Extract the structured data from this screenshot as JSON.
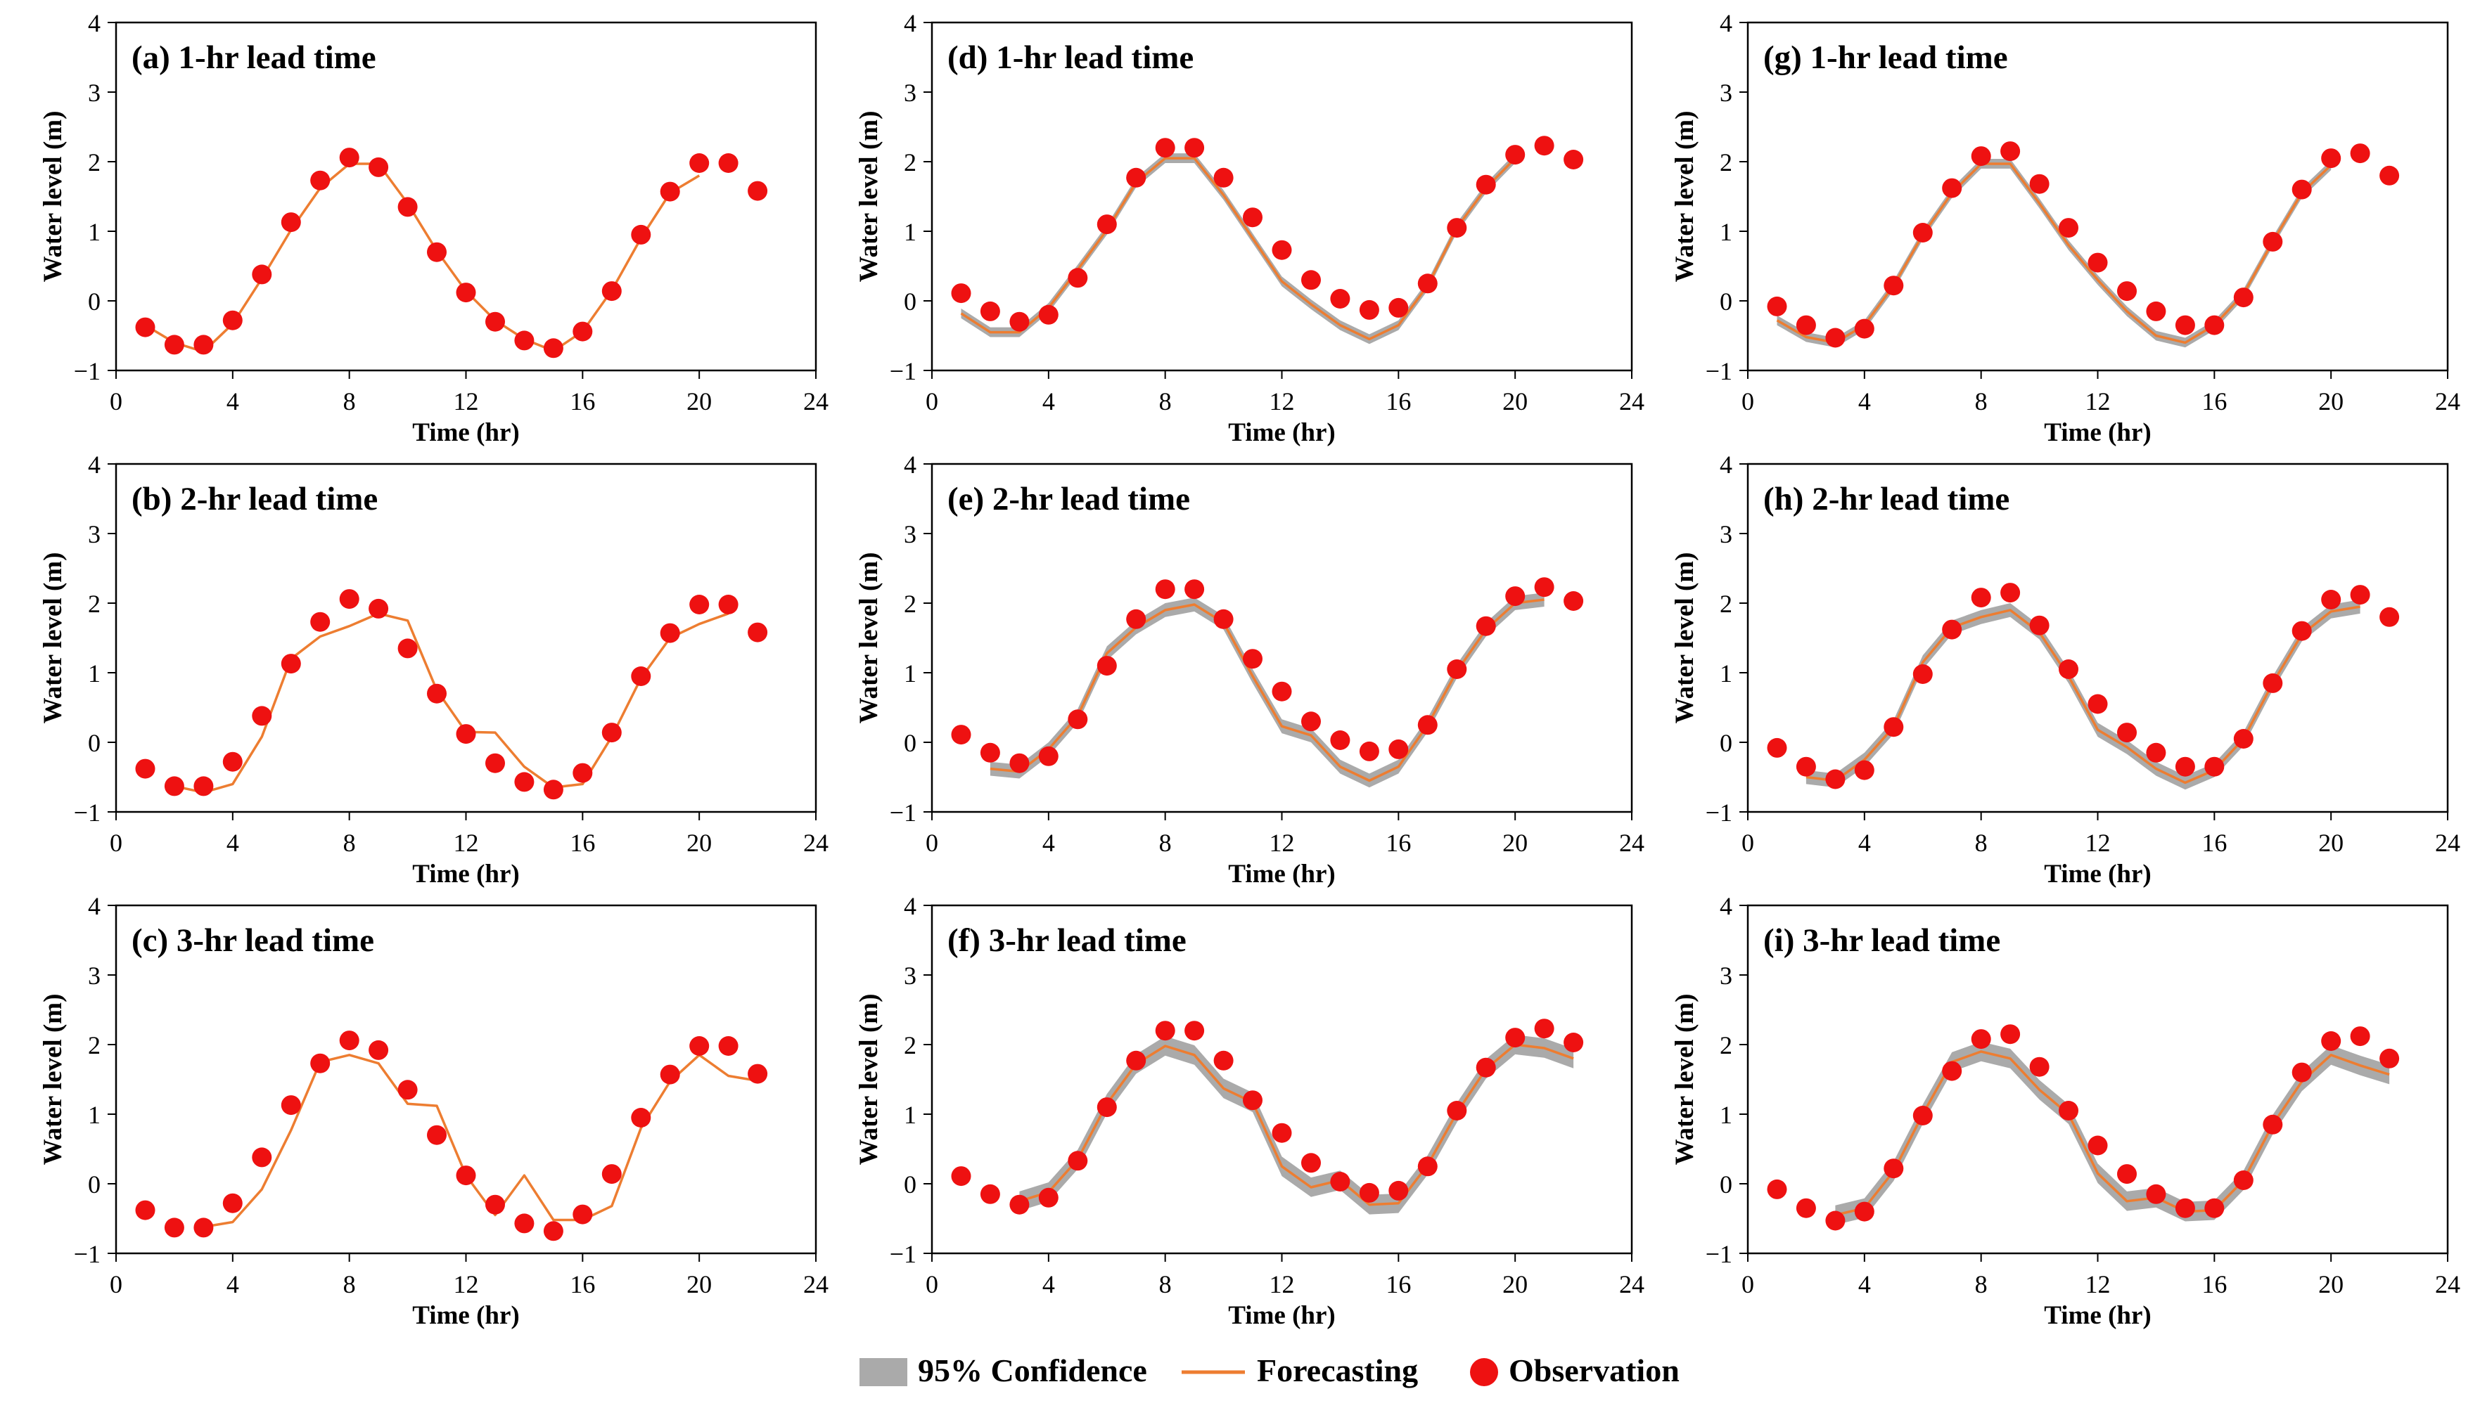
{
  "chart_data": [
    {
      "id": "a",
      "type": "line",
      "title": "(a) 1-hr lead time",
      "xlabel": "Time (hr)",
      "ylabel": "Water level (m)",
      "xlim": [
        0,
        24
      ],
      "ylim": [
        -1,
        4
      ],
      "xticks": [
        0,
        4,
        8,
        12,
        16,
        20,
        24
      ],
      "yticks": [
        -1,
        0,
        1,
        2,
        3,
        4
      ],
      "observation": {
        "x": [
          1,
          2,
          3,
          4,
          5,
          6,
          7,
          8,
          9,
          10,
          11,
          12,
          13,
          14,
          15,
          16,
          17,
          18,
          19,
          20,
          21,
          22
        ],
        "y": [
          -0.38,
          -0.63,
          -0.63,
          -0.28,
          0.38,
          1.13,
          1.73,
          2.06,
          1.92,
          1.35,
          0.7,
          0.12,
          -0.3,
          -0.57,
          -0.68,
          -0.44,
          0.14,
          0.95,
          1.57,
          1.98,
          1.98,
          1.58
        ]
      },
      "forecast": {
        "x": [
          1,
          2,
          3,
          4,
          5,
          6,
          7,
          8,
          9,
          10,
          11,
          12,
          13,
          14,
          15,
          16,
          17,
          18,
          19,
          20
        ],
        "y": [
          -0.35,
          -0.6,
          -0.73,
          -0.33,
          0.32,
          1.02,
          1.62,
          1.97,
          1.97,
          1.4,
          0.72,
          0.14,
          -0.28,
          -0.55,
          -0.72,
          -0.44,
          0.15,
          0.9,
          1.55,
          1.8
        ]
      },
      "confidence": null
    },
    {
      "id": "b",
      "type": "line",
      "title": "(b) 2-hr lead time",
      "xlabel": "Time (hr)",
      "ylabel": "Water level (m)",
      "xlim": [
        0,
        24
      ],
      "ylim": [
        -1,
        4
      ],
      "xticks": [
        0,
        4,
        8,
        12,
        16,
        20,
        24
      ],
      "yticks": [
        -1,
        0,
        1,
        2,
        3,
        4
      ],
      "observation": {
        "x": [
          1,
          2,
          3,
          4,
          5,
          6,
          7,
          8,
          9,
          10,
          11,
          12,
          13,
          14,
          15,
          16,
          17,
          18,
          19,
          20,
          21,
          22
        ],
        "y": [
          -0.38,
          -0.63,
          -0.63,
          -0.28,
          0.38,
          1.13,
          1.73,
          2.06,
          1.92,
          1.35,
          0.7,
          0.12,
          -0.3,
          -0.57,
          -0.68,
          -0.44,
          0.14,
          0.95,
          1.57,
          1.98,
          1.98,
          1.58
        ]
      },
      "forecast": {
        "x": [
          2,
          3,
          4,
          5,
          6,
          7,
          8,
          9,
          10,
          11,
          12,
          13,
          14,
          15,
          16,
          17,
          18,
          19,
          20,
          21
        ],
        "y": [
          -0.63,
          -0.72,
          -0.6,
          0.08,
          1.2,
          1.52,
          1.67,
          1.85,
          1.75,
          0.75,
          0.15,
          0.14,
          -0.35,
          -0.65,
          -0.6,
          0.08,
          0.92,
          1.5,
          1.7,
          1.85
        ]
      },
      "confidence": null
    },
    {
      "id": "c",
      "type": "line",
      "title": "(c) 3-hr lead time",
      "xlabel": "Time (hr)",
      "ylabel": "Water level (m)",
      "xlim": [
        0,
        24
      ],
      "ylim": [
        -1,
        4
      ],
      "xticks": [
        0,
        4,
        8,
        12,
        16,
        20,
        24
      ],
      "yticks": [
        -1,
        0,
        1,
        2,
        3,
        4
      ],
      "observation": {
        "x": [
          1,
          2,
          3,
          4,
          5,
          6,
          7,
          8,
          9,
          10,
          11,
          12,
          13,
          14,
          15,
          16,
          17,
          18,
          19,
          20,
          21,
          22
        ],
        "y": [
          -0.38,
          -0.63,
          -0.63,
          -0.28,
          0.38,
          1.13,
          1.73,
          2.06,
          1.92,
          1.35,
          0.7,
          0.12,
          -0.3,
          -0.57,
          -0.68,
          -0.44,
          0.14,
          0.95,
          1.57,
          1.98,
          1.98,
          1.58
        ]
      },
      "forecast": {
        "x": [
          3,
          4,
          5,
          6,
          7,
          8,
          9,
          10,
          11,
          12,
          13,
          14,
          15,
          16,
          17,
          18,
          19,
          20,
          21,
          22
        ],
        "y": [
          -0.62,
          -0.55,
          -0.08,
          0.77,
          1.75,
          1.85,
          1.73,
          1.15,
          1.12,
          0.12,
          -0.45,
          0.12,
          -0.52,
          -0.52,
          -0.32,
          0.8,
          1.47,
          1.85,
          1.55,
          1.48
        ]
      },
      "confidence": null
    },
    {
      "id": "d",
      "type": "line",
      "title": "(d) 1-hr lead time",
      "xlabel": "Time (hr)",
      "ylabel": "Water level (m)",
      "xlim": [
        0,
        24
      ],
      "ylim": [
        -1,
        4
      ],
      "xticks": [
        0,
        4,
        8,
        12,
        16,
        20,
        24
      ],
      "yticks": [
        -1,
        0,
        1,
        2,
        3,
        4
      ],
      "observation": {
        "x": [
          1,
          2,
          3,
          4,
          5,
          6,
          7,
          8,
          9,
          10,
          11,
          12,
          13,
          14,
          15,
          16,
          17,
          18,
          19,
          20,
          21,
          22
        ],
        "y": [
          0.11,
          -0.15,
          -0.3,
          -0.2,
          0.33,
          1.1,
          1.77,
          2.2,
          2.2,
          1.77,
          1.2,
          0.73,
          0.3,
          0.03,
          -0.13,
          -0.1,
          0.25,
          1.05,
          1.67,
          2.1,
          2.23,
          2.03
        ]
      },
      "forecast": {
        "x": [
          1,
          2,
          3,
          4,
          5,
          6,
          7,
          8,
          9,
          10,
          11,
          12,
          13,
          14,
          15,
          16,
          17,
          18,
          19,
          20
        ],
        "y": [
          -0.18,
          -0.45,
          -0.45,
          -0.1,
          0.45,
          1.02,
          1.7,
          2.05,
          2.05,
          1.52,
          0.9,
          0.28,
          -0.05,
          -0.35,
          -0.55,
          -0.35,
          0.22,
          1.05,
          1.62,
          2.05
        ]
      },
      "confidence": {
        "half_width": 0.07
      }
    },
    {
      "id": "e",
      "type": "line",
      "title": "(e) 2-hr lead time",
      "xlabel": "Time (hr)",
      "ylabel": "Water level (m)",
      "xlim": [
        0,
        24
      ],
      "ylim": [
        -1,
        4
      ],
      "xticks": [
        0,
        4,
        8,
        12,
        16,
        20,
        24
      ],
      "yticks": [
        -1,
        0,
        1,
        2,
        3,
        4
      ],
      "observation": {
        "x": [
          1,
          2,
          3,
          4,
          5,
          6,
          7,
          8,
          9,
          10,
          11,
          12,
          13,
          14,
          15,
          16,
          17,
          18,
          19,
          20,
          21,
          22
        ],
        "y": [
          0.11,
          -0.15,
          -0.3,
          -0.2,
          0.33,
          1.1,
          1.77,
          2.2,
          2.2,
          1.77,
          1.2,
          0.73,
          0.3,
          0.03,
          -0.13,
          -0.1,
          0.25,
          1.05,
          1.67,
          2.1,
          2.23,
          2.03
        ]
      },
      "forecast": {
        "x": [
          2,
          3,
          4,
          5,
          6,
          7,
          8,
          9,
          10,
          11,
          12,
          13,
          14,
          15,
          16,
          17,
          18,
          19,
          20,
          21
        ],
        "y": [
          -0.38,
          -0.42,
          -0.1,
          0.38,
          1.28,
          1.65,
          1.9,
          1.98,
          1.72,
          0.95,
          0.23,
          0.1,
          -0.35,
          -0.55,
          -0.35,
          0.25,
          1.02,
          1.62,
          2.0,
          2.05
        ]
      },
      "confidence": {
        "half_width": 0.1
      }
    },
    {
      "id": "f",
      "type": "line",
      "title": "(f) 3-hr lead time",
      "xlabel": "Time (hr)",
      "ylabel": "Water level (m)",
      "xlim": [
        0,
        24
      ],
      "ylim": [
        -1,
        4
      ],
      "xticks": [
        0,
        4,
        8,
        12,
        16,
        20,
        24
      ],
      "yticks": [
        -1,
        0,
        1,
        2,
        3,
        4
      ],
      "observation": {
        "x": [
          1,
          2,
          3,
          4,
          5,
          6,
          7,
          8,
          9,
          10,
          11,
          12,
          13,
          14,
          15,
          16,
          17,
          18,
          19,
          20,
          21,
          22
        ],
        "y": [
          0.11,
          -0.15,
          -0.3,
          -0.2,
          0.33,
          1.1,
          1.77,
          2.2,
          2.2,
          1.77,
          1.2,
          0.73,
          0.3,
          0.03,
          -0.13,
          -0.1,
          0.25,
          1.05,
          1.67,
          2.1,
          2.23,
          2.03
        ]
      },
      "forecast": {
        "x": [
          3,
          4,
          5,
          6,
          7,
          8,
          9,
          10,
          11,
          12,
          13,
          14,
          15,
          16,
          17,
          18,
          19,
          20,
          21,
          22
        ],
        "y": [
          -0.25,
          -0.12,
          0.35,
          1.15,
          1.72,
          1.98,
          1.85,
          1.37,
          1.17,
          0.25,
          -0.05,
          0.05,
          -0.3,
          -0.28,
          0.27,
          1.02,
          1.65,
          2.0,
          1.95,
          1.8
        ]
      },
      "confidence": {
        "half_width": 0.14
      }
    },
    {
      "id": "g",
      "type": "line",
      "title": "(g) 1-hr lead time",
      "xlabel": "Time (hr)",
      "ylabel": "Water level (m)",
      "xlim": [
        0,
        24
      ],
      "ylim": [
        -1,
        4
      ],
      "xticks": [
        0,
        4,
        8,
        12,
        16,
        20,
        24
      ],
      "yticks": [
        -1,
        0,
        1,
        2,
        3,
        4
      ],
      "observation": {
        "x": [
          1,
          2,
          3,
          4,
          5,
          6,
          7,
          8,
          9,
          10,
          11,
          12,
          13,
          14,
          15,
          16,
          17,
          18,
          19,
          20,
          21,
          22
        ],
        "y": [
          -0.08,
          -0.35,
          -0.53,
          -0.4,
          0.22,
          0.98,
          1.62,
          2.08,
          2.15,
          1.68,
          1.05,
          0.55,
          0.14,
          -0.15,
          -0.35,
          -0.35,
          0.05,
          0.85,
          1.6,
          2.05,
          2.12,
          1.8
        ]
      },
      "forecast": {
        "x": [
          1,
          2,
          3,
          4,
          5,
          6,
          7,
          8,
          9,
          10,
          11,
          12,
          13,
          14,
          15,
          16,
          17,
          18,
          19,
          20
        ],
        "y": [
          -0.28,
          -0.52,
          -0.6,
          -0.35,
          0.22,
          0.95,
          1.55,
          1.97,
          1.97,
          1.4,
          0.8,
          0.3,
          -0.15,
          -0.5,
          -0.6,
          -0.35,
          0.1,
          0.85,
          1.55,
          1.95
        ]
      },
      "confidence": {
        "half_width": 0.07
      }
    },
    {
      "id": "h",
      "type": "line",
      "title": "(h) 2-hr lead time",
      "xlabel": "Time (hr)",
      "ylabel": "Water level (m)",
      "xlim": [
        0,
        24
      ],
      "ylim": [
        -1,
        4
      ],
      "xticks": [
        0,
        4,
        8,
        12,
        16,
        20,
        24
      ],
      "yticks": [
        -1,
        0,
        1,
        2,
        3,
        4
      ],
      "observation": {
        "x": [
          1,
          2,
          3,
          4,
          5,
          6,
          7,
          8,
          9,
          10,
          11,
          12,
          13,
          14,
          15,
          16,
          17,
          18,
          19,
          20,
          21,
          22
        ],
        "y": [
          -0.08,
          -0.35,
          -0.53,
          -0.4,
          0.22,
          0.98,
          1.62,
          2.08,
          2.15,
          1.68,
          1.05,
          0.55,
          0.14,
          -0.15,
          -0.35,
          -0.35,
          0.05,
          0.85,
          1.6,
          2.05,
          2.12,
          1.8
        ]
      },
      "forecast": {
        "x": [
          2,
          3,
          4,
          5,
          6,
          7,
          8,
          9,
          10,
          11,
          12,
          13,
          14,
          15,
          16,
          17,
          18,
          19,
          20,
          21
        ],
        "y": [
          -0.5,
          -0.55,
          -0.25,
          0.22,
          1.15,
          1.65,
          1.8,
          1.9,
          1.58,
          0.95,
          0.18,
          -0.07,
          -0.38,
          -0.58,
          -0.4,
          0.05,
          0.85,
          1.55,
          1.88,
          1.95
        ]
      },
      "confidence": {
        "half_width": 0.1
      }
    },
    {
      "id": "i",
      "type": "line",
      "title": "(i) 3-hr lead time",
      "xlabel": "Time (hr)",
      "ylabel": "Water level (m)",
      "xlim": [
        0,
        24
      ],
      "ylim": [
        -1,
        4
      ],
      "xticks": [
        0,
        4,
        8,
        12,
        16,
        20,
        24
      ],
      "yticks": [
        -1,
        0,
        1,
        2,
        3,
        4
      ],
      "observation": {
        "x": [
          1,
          2,
          3,
          4,
          5,
          6,
          7,
          8,
          9,
          10,
          11,
          12,
          13,
          14,
          15,
          16,
          17,
          18,
          19,
          20,
          21,
          22
        ],
        "y": [
          -0.08,
          -0.35,
          -0.53,
          -0.4,
          0.22,
          0.98,
          1.62,
          2.08,
          2.15,
          1.68,
          1.05,
          0.55,
          0.14,
          -0.15,
          -0.35,
          -0.35,
          0.05,
          0.85,
          1.6,
          2.05,
          2.12,
          1.8
        ]
      },
      "forecast": {
        "x": [
          3,
          4,
          5,
          6,
          7,
          8,
          9,
          10,
          11,
          12,
          13,
          14,
          15,
          16,
          17,
          18,
          19,
          20,
          21,
          22
        ],
        "y": [
          -0.45,
          -0.35,
          0.18,
          1.0,
          1.75,
          1.9,
          1.8,
          1.35,
          1.0,
          0.15,
          -0.25,
          -0.2,
          -0.4,
          -0.38,
          0.05,
          0.85,
          1.47,
          1.85,
          1.7,
          1.57
        ]
      },
      "confidence": {
        "half_width": 0.14
      }
    }
  ],
  "legend": {
    "confidence_label": "95% Confidence",
    "forecast_label": "Forecasting",
    "observation_label": "Observation"
  },
  "colors": {
    "observation": "#ee1111",
    "forecast": "#ed7d31",
    "confidence": "#aaaaaa"
  }
}
